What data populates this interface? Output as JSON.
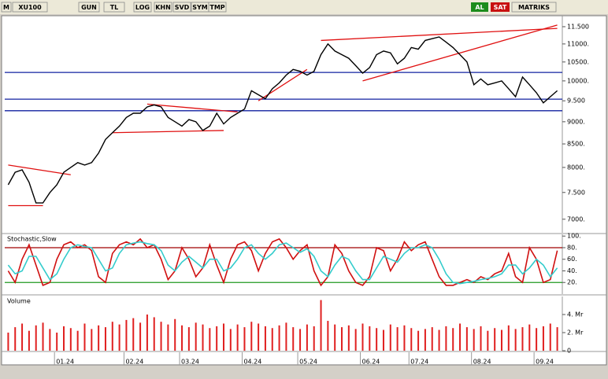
{
  "toolbar": {
    "menu": "M",
    "symbol": "XU100",
    "buttons": [
      "GUN",
      "TL",
      "LOG",
      "KHN",
      "SVD",
      "SYM",
      "TMP"
    ],
    "buy": "AL",
    "sell": "SAT",
    "brand": "MATRIKS"
  },
  "chart_data": [
    {
      "type": "line",
      "log": true,
      "categories": [
        null,
        null,
        null,
        null,
        null,
        null,
        null,
        "01.24",
        null,
        null,
        null,
        null,
        null,
        null,
        null,
        null,
        null,
        "02.24",
        null,
        null,
        null,
        null,
        null,
        null,
        null,
        "03.24",
        null,
        null,
        null,
        null,
        null,
        null,
        null,
        null,
        "04.24",
        null,
        null,
        null,
        null,
        null,
        null,
        null,
        "05.24",
        null,
        null,
        null,
        null,
        null,
        null,
        null,
        null,
        "06.24",
        null,
        null,
        null,
        null,
        null,
        null,
        "07.24",
        null,
        null,
        null,
        null,
        null,
        null,
        null,
        null,
        "08.24",
        null,
        null,
        null,
        null,
        null,
        null,
        null,
        null,
        "09.24",
        null,
        null,
        null
      ],
      "series": [
        {
          "color": "#000000",
          "values": [
            7650,
            7900,
            7950,
            7700,
            7300,
            7300,
            7500,
            7650,
            7900,
            8000,
            8100,
            8050,
            8100,
            8300,
            8600,
            8750,
            8900,
            9100,
            9200,
            9200,
            9350,
            9400,
            9350,
            9100,
            9000,
            8900,
            9050,
            9000,
            8800,
            8900,
            9200,
            8950,
            9100,
            9200,
            9300,
            9750,
            9650,
            9550,
            9800,
            9950,
            10150,
            10300,
            10250,
            10150,
            10250,
            10700,
            11000,
            10800,
            10700,
            10600,
            10400,
            10200,
            10350,
            10700,
            10800,
            10750,
            10450,
            10600,
            10900,
            10850,
            11100,
            11150,
            11200,
            11050,
            10900,
            10700,
            10500,
            9900,
            10050,
            9900,
            9950,
            10000,
            9800,
            9600,
            10100,
            9900,
            9700,
            9450,
            9600,
            9750
          ]
        }
      ],
      "horizontal_lines": {
        "color": "#1020a0",
        "values": [
          10220,
          9540,
          9260
        ]
      },
      "trendlines": {
        "color": "#e01010",
        "lines": [
          {
            "from": 0,
            "to": 9,
            "values": [
              8050,
              7850
            ]
          },
          {
            "from": 0,
            "to": 5,
            "values": [
              7250,
              7250
            ]
          },
          {
            "from": 20,
            "to": 33,
            "values": [
              9420,
              9230
            ]
          },
          {
            "from": 15,
            "to": 31,
            "values": [
              8750,
              8800
            ]
          },
          {
            "from": 36,
            "to": 43,
            "values": [
              9500,
              10300
            ]
          },
          {
            "from": 45,
            "to": 79,
            "values": [
              11100,
              11450
            ]
          },
          {
            "from": 51,
            "to": 79,
            "values": [
              10000,
              11550
            ]
          }
        ]
      },
      "ylim": [
        6760,
        11830
      ],
      "yticks": [
        {
          "value": 11500,
          "label": "11.500"
        },
        {
          "value": 11000,
          "label": "11000."
        },
        {
          "value": 10500,
          "label": "10500."
        },
        {
          "value": 10000,
          "label": "10000."
        },
        {
          "value": 9500,
          "label": "9.500"
        },
        {
          "value": 9000,
          "label": "9000."
        },
        {
          "value": 8500,
          "label": "8500."
        },
        {
          "value": 8000,
          "label": "8000."
        },
        {
          "value": 7500,
          "label": "7.500"
        },
        {
          "value": 7000,
          "label": "7000."
        }
      ]
    },
    {
      "type": "line",
      "title": "Stochastic,Slow",
      "series": [
        {
          "color": "#d01010",
          "values": [
            40,
            20,
            60,
            85,
            50,
            15,
            20,
            60,
            85,
            90,
            80,
            85,
            75,
            30,
            20,
            70,
            85,
            90,
            85,
            95,
            80,
            85,
            60,
            25,
            40,
            80,
            60,
            30,
            45,
            85,
            50,
            20,
            60,
            85,
            90,
            75,
            40,
            70,
            90,
            95,
            80,
            60,
            75,
            85,
            40,
            15,
            30,
            85,
            70,
            40,
            20,
            15,
            30,
            80,
            75,
            40,
            60,
            90,
            75,
            85,
            90,
            60,
            30,
            15,
            15,
            20,
            25,
            20,
            30,
            25,
            35,
            40,
            70,
            30,
            20,
            80,
            60,
            20,
            25,
            75
          ]
        },
        {
          "color": "#33cccc",
          "values": [
            50,
            35,
            40,
            65,
            65,
            45,
            25,
            35,
            60,
            80,
            85,
            82,
            80,
            60,
            40,
            45,
            70,
            85,
            88,
            90,
            87,
            85,
            75,
            50,
            40,
            55,
            65,
            55,
            45,
            60,
            60,
            40,
            45,
            60,
            80,
            85,
            70,
            60,
            70,
            85,
            88,
            80,
            72,
            78,
            65,
            40,
            30,
            50,
            65,
            60,
            40,
            25,
            25,
            45,
            65,
            60,
            55,
            70,
            80,
            80,
            85,
            80,
            60,
            35,
            20,
            18,
            20,
            22,
            25,
            27,
            30,
            35,
            50,
            50,
            35,
            45,
            60,
            50,
            30,
            45
          ]
        }
      ],
      "levels": [
        {
          "value": 80,
          "color": "#a00000"
        },
        {
          "value": 20,
          "color": "#1f9a1f"
        }
      ],
      "ylim": [
        0,
        103
      ],
      "yticks": [
        {
          "value": 100,
          "label": "100."
        },
        {
          "value": 80,
          "label": "80."
        },
        {
          "value": 60,
          "label": "60."
        },
        {
          "value": 40,
          "label": "40."
        },
        {
          "value": 20,
          "label": "20."
        }
      ]
    },
    {
      "type": "bar",
      "title": "Volume",
      "color": "#e02020",
      "values": [
        2.0,
        2.6,
        3.0,
        2.2,
        2.8,
        3.1,
        2.4,
        2.0,
        2.7,
        2.5,
        2.2,
        3.0,
        2.4,
        2.8,
        2.6,
        3.2,
        2.9,
        3.4,
        3.6,
        3.1,
        4.0,
        3.7,
        3.2,
        2.9,
        3.5,
        2.8,
        2.6,
        3.1,
        2.9,
        2.5,
        2.7,
        3.0,
        2.4,
        2.9,
        2.6,
        3.2,
        3.0,
        2.7,
        2.5,
        2.8,
        3.1,
        2.6,
        2.4,
        2.9,
        2.7,
        5.6,
        3.3,
        2.9,
        2.6,
        2.8,
        2.4,
        3.0,
        2.7,
        2.5,
        2.3,
        2.9,
        2.6,
        2.8,
        2.5,
        2.2,
        2.4,
        2.6,
        2.3,
        2.7,
        2.5,
        3.0,
        2.6,
        2.4,
        2.7,
        2.2,
        2.5,
        2.3,
        2.8,
        2.4,
        2.6,
        2.9,
        2.5,
        2.7,
        3.0,
        2.6
      ],
      "ylim": [
        0,
        6
      ],
      "yticks": [
        {
          "value": 4,
          "label": "4. Mr"
        },
        {
          "value": 2,
          "label": "2. Mr"
        },
        0
      ]
    }
  ]
}
